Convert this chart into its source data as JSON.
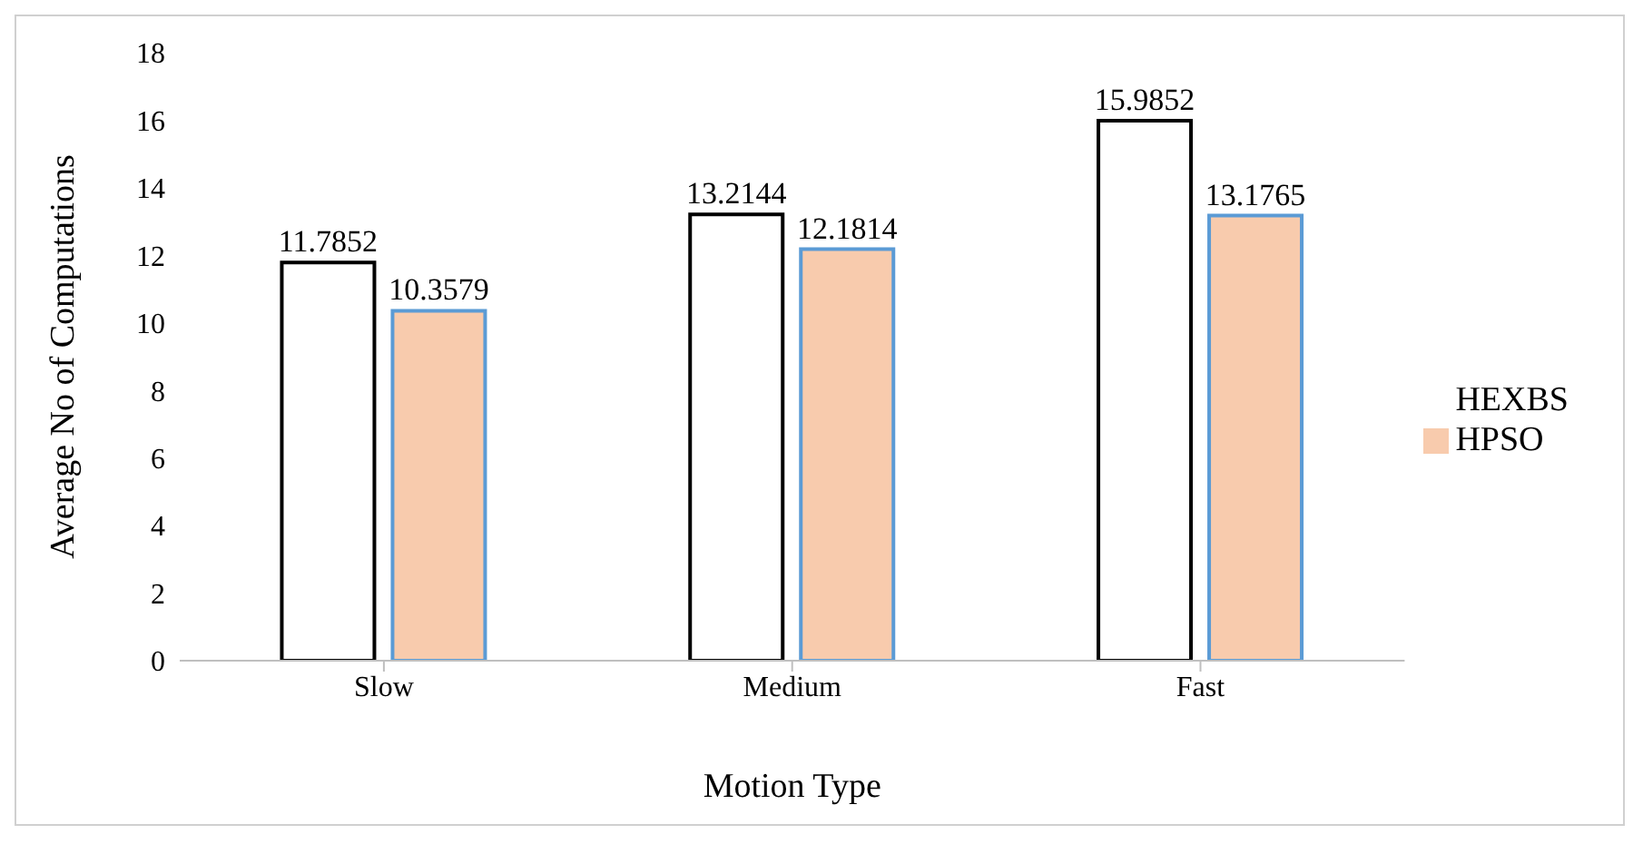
{
  "chart_data": {
    "type": "bar",
    "xlabel": "Motion Type",
    "ylabel": "Average No of Computations",
    "categories": [
      "Slow",
      "Medium",
      "Fast"
    ],
    "series": [
      {
        "name": "HEXBS",
        "color": "#ffffff",
        "values": [
          11.7852,
          13.2144,
          15.9852
        ]
      },
      {
        "name": "HPSO",
        "color": "#f8cbad",
        "values": [
          10.3579,
          12.1814,
          13.1765
        ]
      }
    ],
    "ylim": [
      0,
      18
    ],
    "yticks": [
      0,
      2,
      4,
      6,
      8,
      10,
      12,
      14,
      16,
      18
    ],
    "grid": false,
    "legend": "right",
    "data_labels": true
  }
}
